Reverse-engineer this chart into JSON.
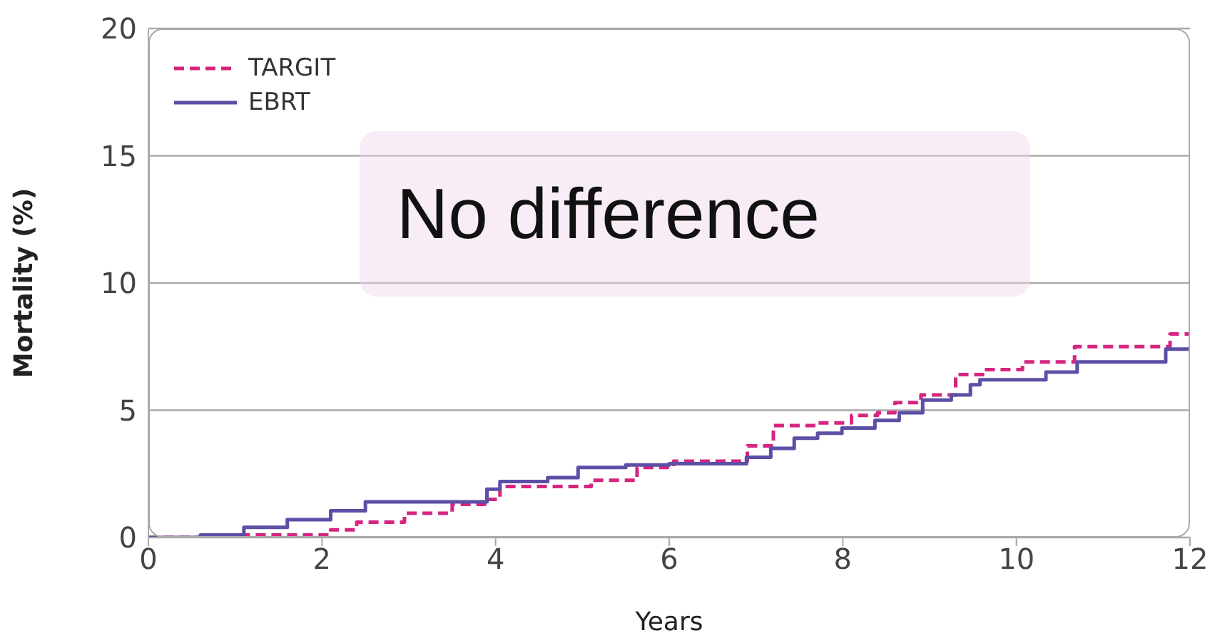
{
  "chart_data": {
    "type": "step",
    "xlabel": "Years",
    "ylabel": "Mortality (%)",
    "xlim": [
      0,
      12
    ],
    "xticks": [
      0,
      2,
      4,
      6,
      8,
      10,
      12
    ],
    "ylim": [
      0,
      20
    ],
    "yticks": [
      0,
      5,
      10,
      15,
      20
    ],
    "grid": "y",
    "legend": "top left",
    "annotations": [
      "No difference"
    ],
    "series": [
      {
        "name": "TARGIT",
        "color": "#d6257f",
        "line_style": "dashed",
        "x": [
          0,
          1.1,
          2.1,
          2.4,
          2.95,
          3.5,
          3.9,
          4.05,
          5.1,
          5.63,
          6.05,
          6.9,
          7.2,
          7.7,
          8.1,
          8.4,
          8.6,
          8.9,
          9.3,
          9.63,
          10.07,
          10.67,
          11.77,
          12
        ],
        "values": [
          0,
          0.1,
          0.3,
          0.6,
          0.95,
          1.3,
          1.5,
          2.0,
          2.25,
          2.75,
          3.0,
          3.6,
          4.4,
          4.5,
          4.8,
          4.9,
          5.3,
          5.6,
          6.4,
          6.6,
          6.9,
          7.5,
          8.0,
          8.0
        ]
      },
      {
        "name": "EBRT",
        "color": "#5b4fa6",
        "line_style": "solid",
        "x": [
          0,
          0.6,
          1.1,
          1.6,
          2.1,
          2.5,
          3.9,
          4.05,
          4.6,
          4.95,
          5.5,
          6.0,
          6.89,
          7.17,
          7.44,
          7.71,
          7.99,
          8.37,
          8.65,
          8.92,
          9.25,
          9.47,
          9.58,
          10.34,
          10.7,
          11.72,
          12
        ],
        "values": [
          0,
          0.1,
          0.4,
          0.7,
          1.05,
          1.4,
          1.9,
          2.2,
          2.35,
          2.75,
          2.85,
          2.9,
          3.15,
          3.5,
          3.9,
          4.1,
          4.3,
          4.6,
          4.9,
          5.4,
          5.6,
          6.0,
          6.2,
          6.5,
          6.9,
          7.4,
          7.4
        ]
      }
    ]
  }
}
